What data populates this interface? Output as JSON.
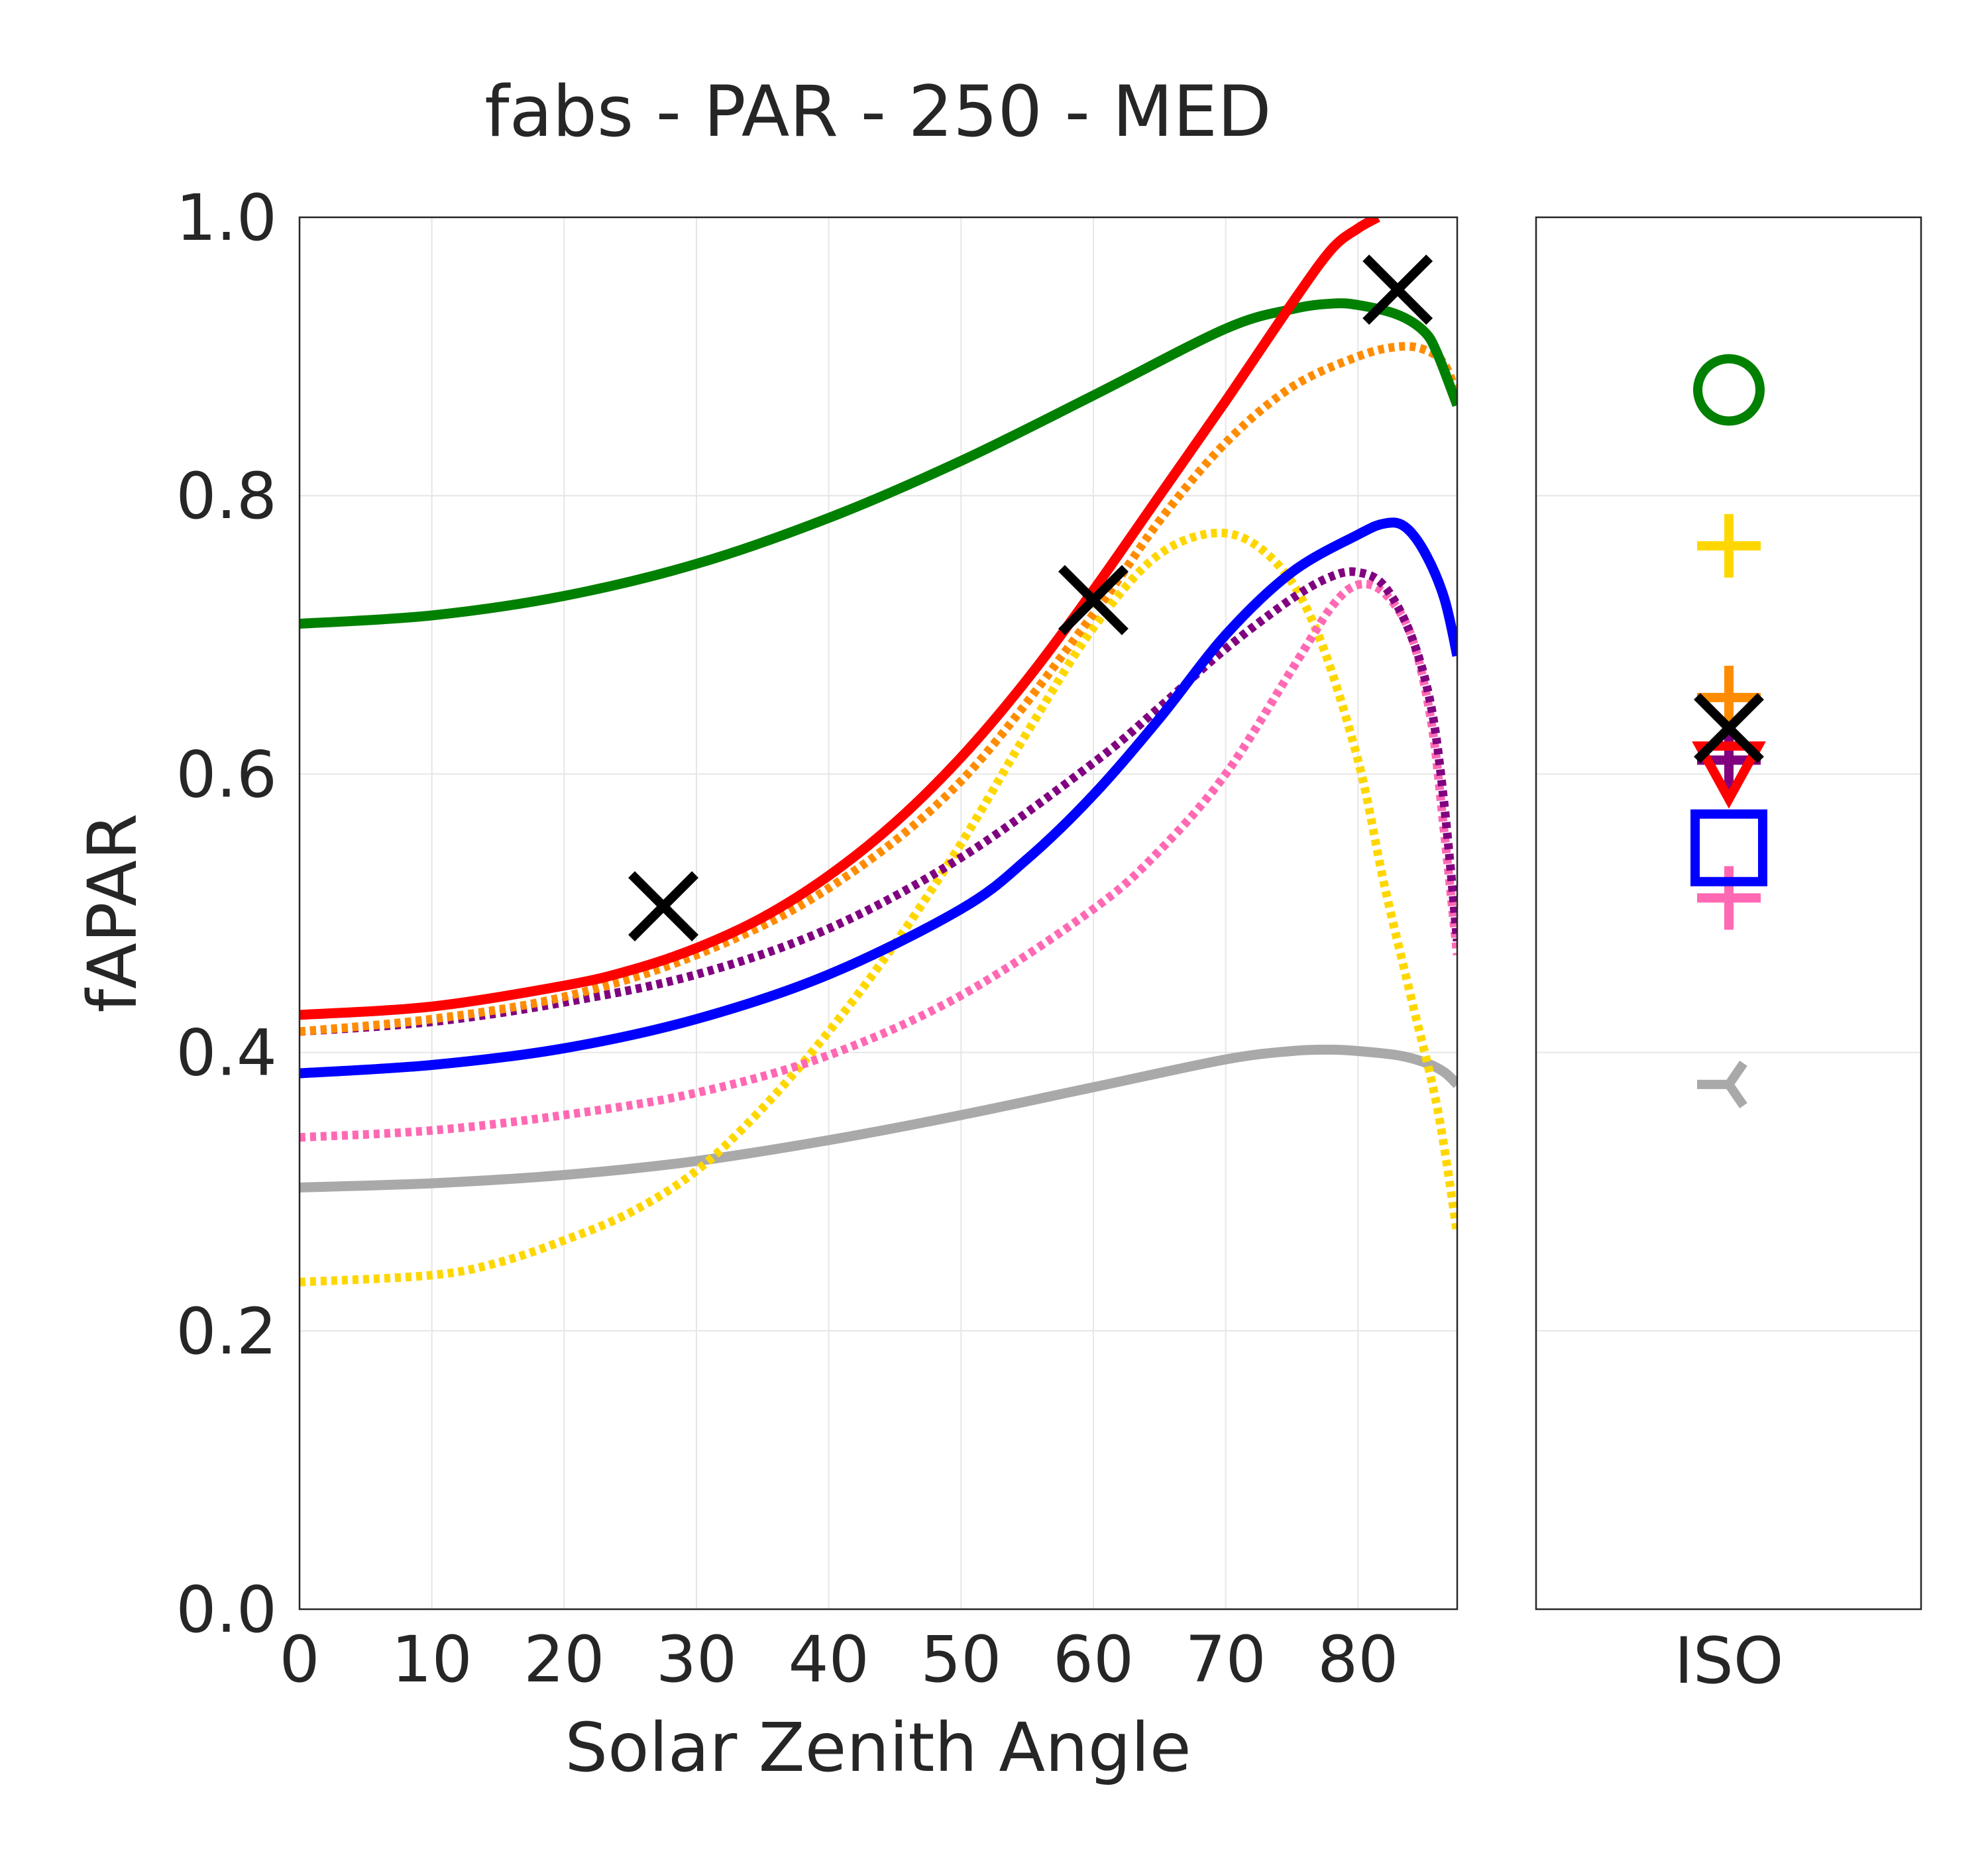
{
  "chart_data": {
    "type": "line",
    "title": "fabs - PAR - 250 - MED",
    "xlabel": "Solar Zenith Angle",
    "ylabel": "fAPAR",
    "xlim": [
      0,
      87.5
    ],
    "ylim": [
      0,
      1
    ],
    "xticks": [
      "0",
      "10",
      "20",
      "30",
      "40",
      "50",
      "60",
      "70",
      "80"
    ],
    "yticks": [
      "0.0",
      "0.2",
      "0.4",
      "0.6",
      "0.8",
      "1.0"
    ],
    "grid": true,
    "side_panel_label": "ISO",
    "series": [
      {
        "color": "#008000",
        "dash": "solid",
        "x": [
          0,
          10,
          20,
          30,
          40,
          50,
          60,
          70,
          75,
          78,
          80,
          83,
          85,
          86,
          87.5
        ],
        "y": [
          0.708,
          0.714,
          0.728,
          0.751,
          0.784,
          0.825,
          0.872,
          0.92,
          0.934,
          0.938,
          0.937,
          0.93,
          0.918,
          0.902,
          0.865
        ]
      },
      {
        "color": "#ff0000",
        "dash": "solid",
        "x": [
          0,
          10,
          20,
          25,
          30,
          35,
          40,
          45,
          50,
          55,
          60,
          65,
          70,
          75,
          78,
          80,
          81.5
        ],
        "y": [
          0.427,
          0.433,
          0.448,
          0.459,
          0.475,
          0.497,
          0.527,
          0.565,
          0.612,
          0.668,
          0.732,
          0.8,
          0.868,
          0.938,
          0.977,
          0.992,
          1.0
        ]
      },
      {
        "color": "#ff8c00",
        "dash": "dotted",
        "x": [
          0,
          10,
          20,
          30,
          40,
          50,
          60,
          65,
          70,
          75,
          80,
          83,
          85,
          86.5,
          87.5
        ],
        "y": [
          0.415,
          0.424,
          0.44,
          0.47,
          0.518,
          0.595,
          0.715,
          0.782,
          0.838,
          0.878,
          0.9,
          0.907,
          0.905,
          0.895,
          0.872
        ]
      },
      {
        "color": "#0000ff",
        "dash": "solid",
        "x": [
          0,
          10,
          20,
          30,
          40,
          50,
          55,
          60,
          65,
          70,
          75,
          80,
          82,
          83.5,
          85,
          86.5,
          87.5
        ],
        "y": [
          0.385,
          0.391,
          0.403,
          0.424,
          0.456,
          0.503,
          0.539,
          0.585,
          0.64,
          0.7,
          0.745,
          0.772,
          0.78,
          0.778,
          0.76,
          0.727,
          0.685
        ]
      },
      {
        "color": "#800080",
        "dash": "dotted",
        "x": [
          0,
          10,
          20,
          30,
          40,
          50,
          60,
          65,
          70,
          75,
          78,
          80,
          82,
          84,
          85.5,
          86.5,
          87.5
        ],
        "y": [
          0.415,
          0.422,
          0.436,
          0.456,
          0.489,
          0.54,
          0.608,
          0.648,
          0.69,
          0.726,
          0.742,
          0.745,
          0.735,
          0.7,
          0.65,
          0.58,
          0.48
        ]
      },
      {
        "color": "#ff69b4",
        "dash": "dotted",
        "x": [
          0,
          10,
          20,
          30,
          40,
          50,
          60,
          65,
          70,
          75,
          78,
          80,
          82,
          84,
          85.5,
          86.5,
          87.5
        ],
        "y": [
          0.339,
          0.344,
          0.355,
          0.371,
          0.398,
          0.441,
          0.503,
          0.545,
          0.6,
          0.675,
          0.72,
          0.736,
          0.73,
          0.7,
          0.64,
          0.56,
          0.47
        ]
      },
      {
        "color": "#ffd700",
        "dash": "dotted",
        "x": [
          0,
          10,
          15,
          20,
          25,
          30,
          35,
          40,
          45,
          50,
          55,
          60,
          65,
          70,
          74,
          77,
          80,
          82,
          84,
          86,
          87.5
        ],
        "y": [
          0.235,
          0.24,
          0.249,
          0.265,
          0.285,
          0.315,
          0.36,
          0.415,
          0.478,
          0.55,
          0.63,
          0.705,
          0.758,
          0.773,
          0.75,
          0.7,
          0.61,
          0.52,
          0.44,
          0.36,
          0.27
        ]
      },
      {
        "color": "#a9a9a9",
        "dash": "solid",
        "x": [
          0,
          10,
          20,
          30,
          40,
          50,
          60,
          70,
          75,
          78,
          80,
          83,
          85,
          86.5,
          87.5
        ],
        "y": [
          0.303,
          0.306,
          0.312,
          0.322,
          0.337,
          0.355,
          0.375,
          0.395,
          0.401,
          0.402,
          0.401,
          0.398,
          0.393,
          0.386,
          0.377
        ]
      }
    ],
    "reference_markers": {
      "marker": "x",
      "color": "#000000",
      "x": [
        27.5,
        60,
        83
      ],
      "y": [
        0.505,
        0.725,
        0.948
      ]
    },
    "iso_markers": [
      {
        "marker": "circle",
        "color": "#008000",
        "y": 0.876
      },
      {
        "marker": "plus",
        "color": "#ffd700",
        "y": 0.764
      },
      {
        "marker": "plus",
        "color": "#ff8c00",
        "y": 0.655
      },
      {
        "marker": "x",
        "color": "#000000",
        "y": 0.633
      },
      {
        "marker": "plus",
        "color": "#800080",
        "y": 0.61
      },
      {
        "marker": "triangle_down",
        "color": "#ff0000",
        "y": 0.603
      },
      {
        "marker": "square",
        "color": "#0000ff",
        "y": 0.547
      },
      {
        "marker": "plus",
        "color": "#ff69b4",
        "y": 0.511
      },
      {
        "marker": "tri_left",
        "color": "#a9a9a9",
        "y": 0.377
      }
    ]
  }
}
